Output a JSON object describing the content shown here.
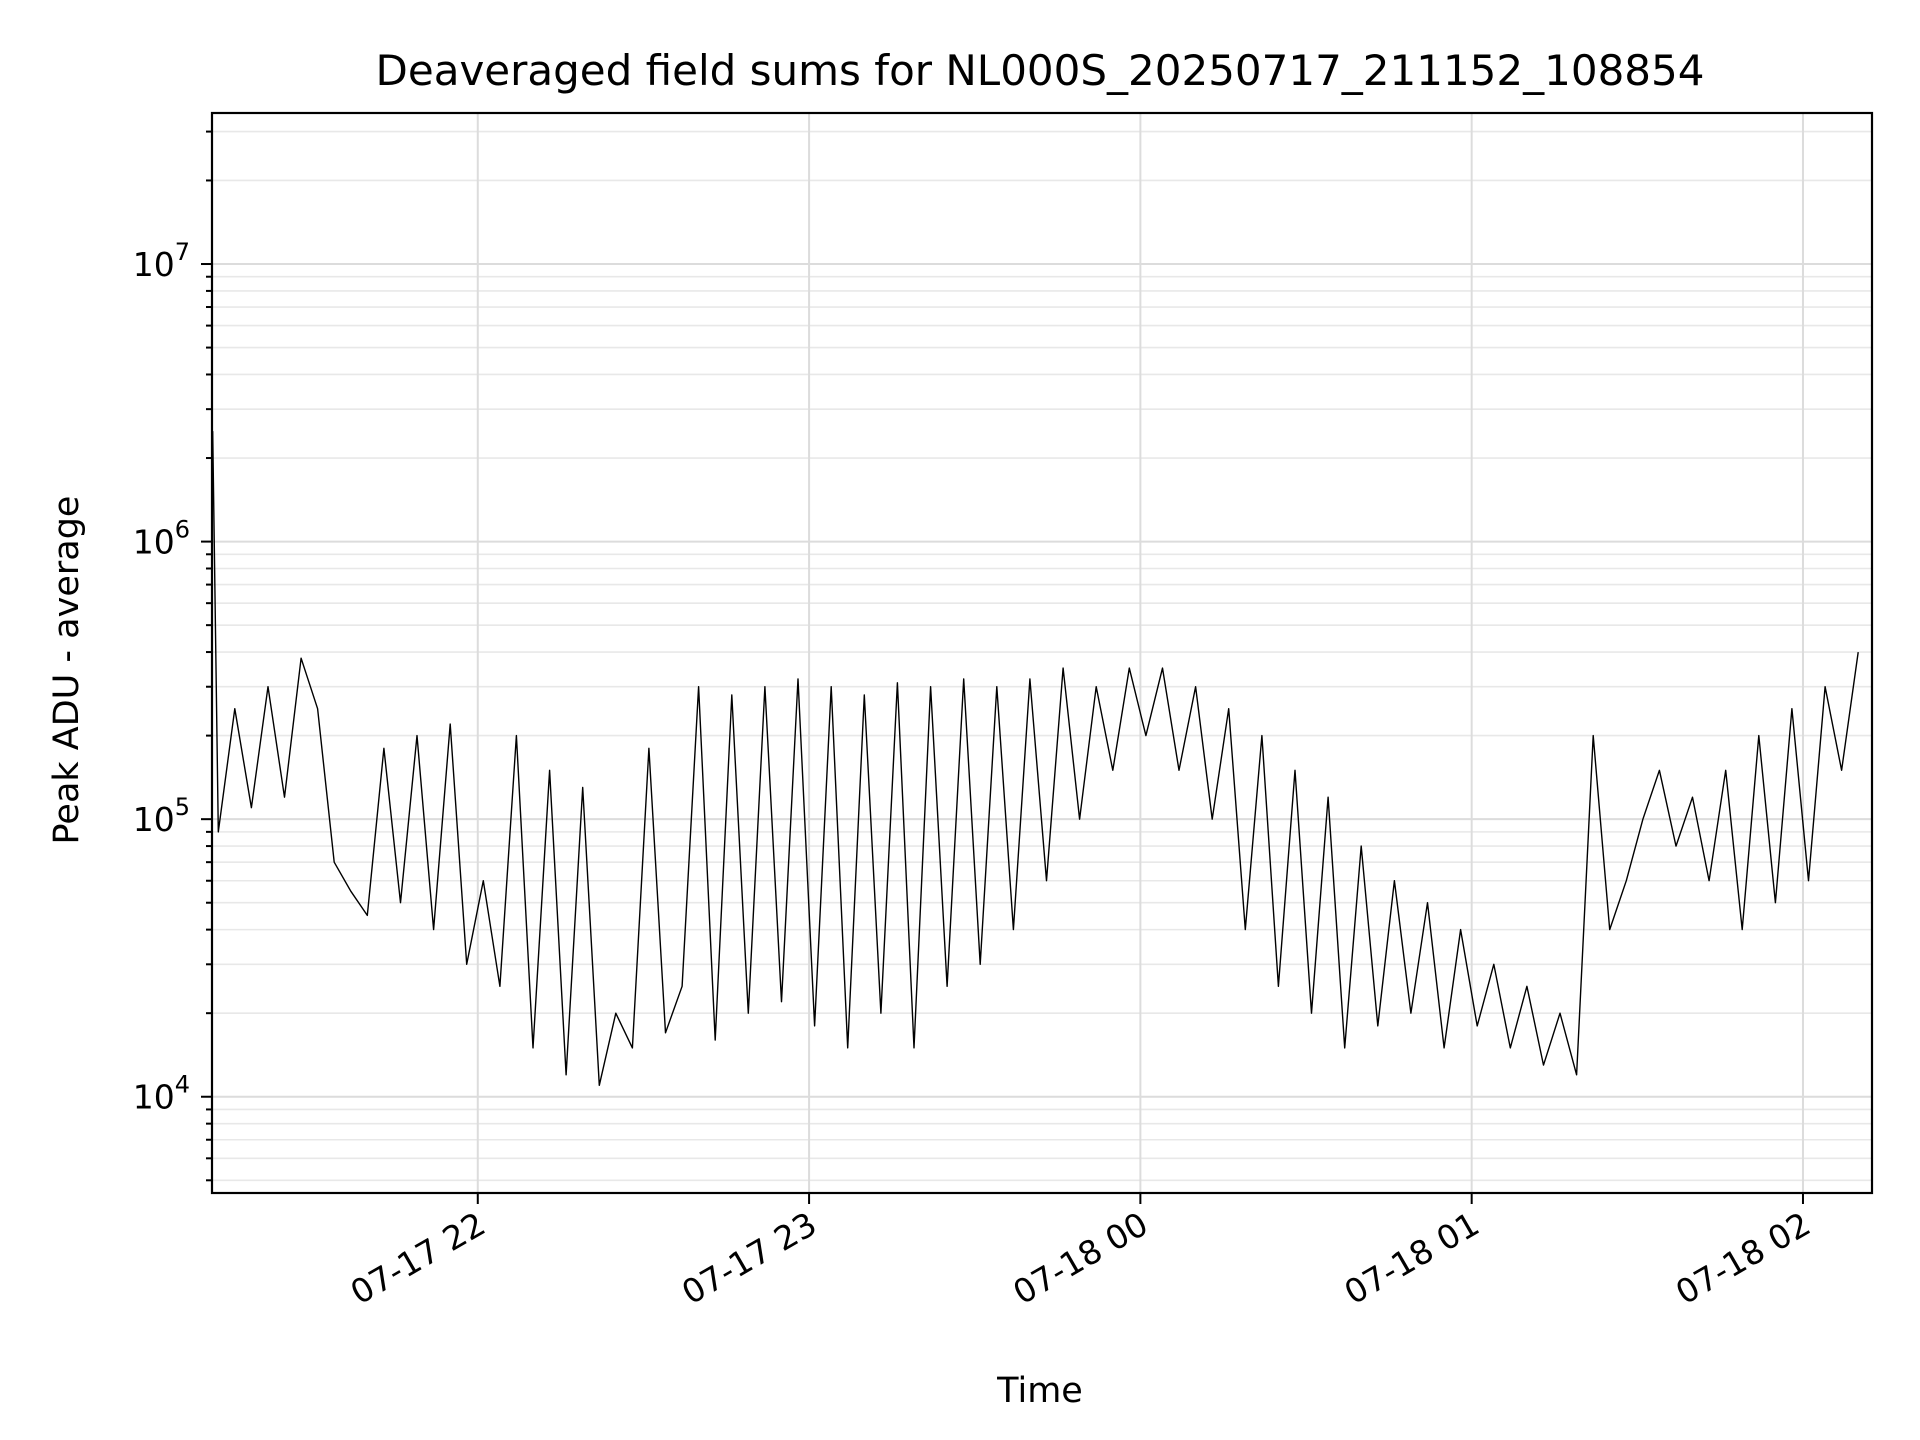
{
  "chart_data": {
    "type": "line",
    "title": "Deaveraged field sums for NL000S_20250717_211152_108854",
    "xlabel": "Time",
    "ylabel": "Peak ADU - average",
    "xlim": [
      "2025-07-17 21:11:52",
      "2025-07-18 02:12:30"
    ],
    "ylim": [
      4500,
      35000000
    ],
    "yscale": "log",
    "grid": true,
    "x_ticks": [
      "2025-07-17 22:00",
      "2025-07-17 23:00",
      "2025-07-18 00:00",
      "2025-07-18 01:00",
      "2025-07-18 02:00"
    ],
    "x_tick_labels": [
      "07-17 22",
      "07-17 23",
      "07-18 00",
      "07-18 01",
      "07-18 02"
    ],
    "y_ticks": [
      10000,
      100000,
      1000000,
      10000000
    ],
    "y_tick_labels": [
      {
        "base": "10",
        "exp": "4"
      },
      {
        "base": "10",
        "exp": "5"
      },
      {
        "base": "10",
        "exp": "6"
      },
      {
        "base": "10",
        "exp": "7"
      }
    ],
    "series": [
      {
        "color": "#000000",
        "x": [
          "2025-07-17 21:12",
          "2025-07-17 21:13",
          "2025-07-17 21:16",
          "2025-07-17 21:19",
          "2025-07-17 21:22",
          "2025-07-17 21:25",
          "2025-07-17 21:28",
          "2025-07-17 21:31",
          "2025-07-17 21:34",
          "2025-07-17 21:37",
          "2025-07-17 21:40",
          "2025-07-17 21:43",
          "2025-07-17 21:46",
          "2025-07-17 21:49",
          "2025-07-17 21:52",
          "2025-07-17 21:55",
          "2025-07-17 21:58",
          "2025-07-17 22:01",
          "2025-07-17 22:04",
          "2025-07-17 22:07",
          "2025-07-17 22:10",
          "2025-07-17 22:13",
          "2025-07-17 22:16",
          "2025-07-17 22:19",
          "2025-07-17 22:22",
          "2025-07-17 22:25",
          "2025-07-17 22:28",
          "2025-07-17 22:31",
          "2025-07-17 22:34",
          "2025-07-17 22:37",
          "2025-07-17 22:40",
          "2025-07-17 22:43",
          "2025-07-17 22:46",
          "2025-07-17 22:49",
          "2025-07-17 22:52",
          "2025-07-17 22:55",
          "2025-07-17 22:58",
          "2025-07-17 23:01",
          "2025-07-17 23:04",
          "2025-07-17 23:07",
          "2025-07-17 23:10",
          "2025-07-17 23:13",
          "2025-07-17 23:16",
          "2025-07-17 23:19",
          "2025-07-17 23:22",
          "2025-07-17 23:25",
          "2025-07-17 23:28",
          "2025-07-17 23:31",
          "2025-07-17 23:34",
          "2025-07-17 23:37",
          "2025-07-17 23:40",
          "2025-07-17 23:43",
          "2025-07-17 23:46",
          "2025-07-17 23:49",
          "2025-07-17 23:52",
          "2025-07-17 23:55",
          "2025-07-17 23:58",
          "2025-07-18 00:01",
          "2025-07-18 00:04",
          "2025-07-18 00:07",
          "2025-07-18 00:10",
          "2025-07-18 00:13",
          "2025-07-18 00:16",
          "2025-07-18 00:19",
          "2025-07-18 00:22",
          "2025-07-18 00:25",
          "2025-07-18 00:28",
          "2025-07-18 00:31",
          "2025-07-18 00:34",
          "2025-07-18 00:37",
          "2025-07-18 00:40",
          "2025-07-18 00:43",
          "2025-07-18 00:46",
          "2025-07-18 00:49",
          "2025-07-18 00:52",
          "2025-07-18 00:55",
          "2025-07-18 00:58",
          "2025-07-18 01:01",
          "2025-07-18 01:04",
          "2025-07-18 01:07",
          "2025-07-18 01:10",
          "2025-07-18 01:13",
          "2025-07-18 01:16",
          "2025-07-18 01:19",
          "2025-07-18 01:22",
          "2025-07-18 01:25",
          "2025-07-18 01:28",
          "2025-07-18 01:31",
          "2025-07-18 01:34",
          "2025-07-18 01:37",
          "2025-07-18 01:40",
          "2025-07-18 01:43",
          "2025-07-18 01:46",
          "2025-07-18 01:49",
          "2025-07-18 01:52",
          "2025-07-18 01:55",
          "2025-07-18 01:58",
          "2025-07-18 02:01",
          "2025-07-18 02:04",
          "2025-07-18 02:07",
          "2025-07-18 02:10"
        ],
        "y": [
          2500000,
          90000,
          250000,
          110000,
          300000,
          120000,
          380000,
          250000,
          70000,
          55000,
          45000,
          180000,
          50000,
          200000,
          40000,
          220000,
          30000,
          60000,
          25000,
          200000,
          15000,
          150000,
          12000,
          130000,
          11000,
          20000,
          15000,
          180000,
          17000,
          25000,
          300000,
          16000,
          280000,
          20000,
          300000,
          22000,
          320000,
          18000,
          300000,
          15000,
          280000,
          20000,
          310000,
          15000,
          300000,
          25000,
          320000,
          30000,
          300000,
          40000,
          320000,
          60000,
          350000,
          100000,
          300000,
          150000,
          350000,
          200000,
          350000,
          150000,
          300000,
          100000,
          250000,
          40000,
          200000,
          25000,
          150000,
          20000,
          120000,
          15000,
          80000,
          18000,
          60000,
          20000,
          50000,
          15000,
          40000,
          18000,
          30000,
          15000,
          25000,
          13000,
          20000,
          12000,
          200000,
          40000,
          60000,
          100000,
          150000,
          80000,
          120000,
          60000,
          150000,
          40000,
          200000,
          50000,
          250000,
          60000,
          300000,
          150000,
          400000
        ]
      }
    ]
  }
}
